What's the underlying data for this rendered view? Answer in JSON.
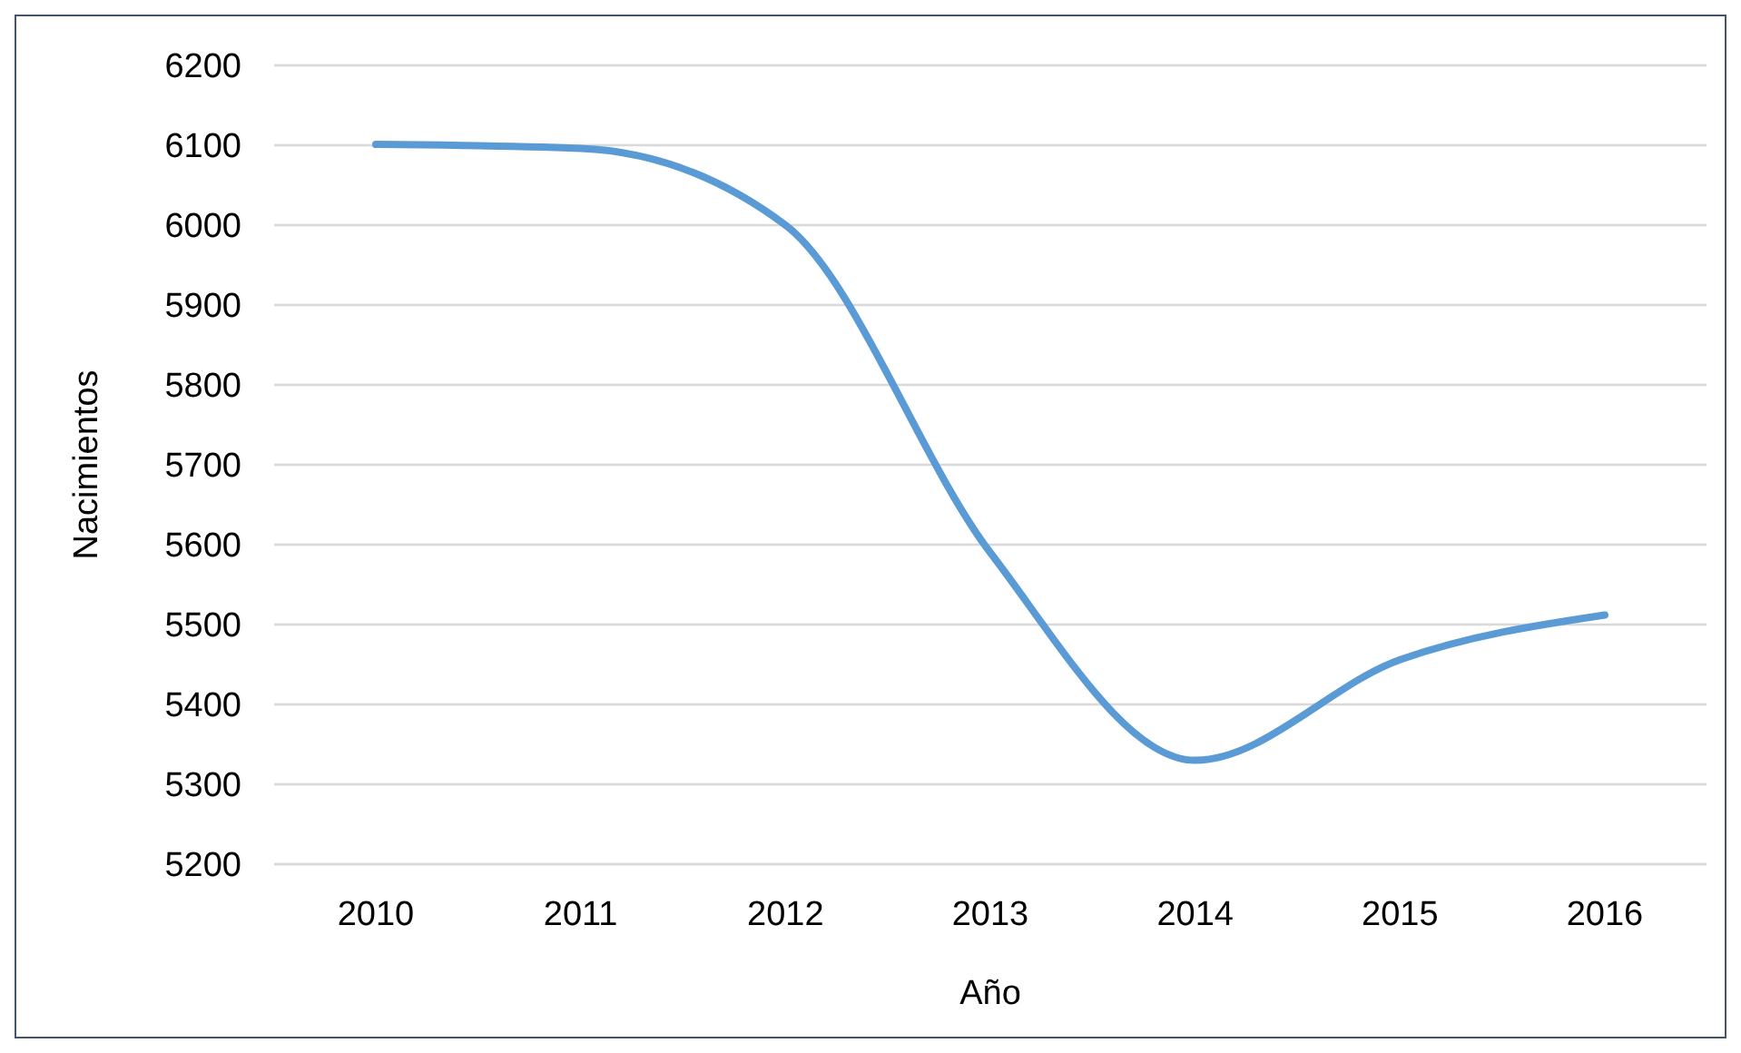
{
  "chart_data": {
    "type": "line",
    "xlabel": "Año",
    "ylabel": "Nacimientos",
    "categories": [
      "2010",
      "2011",
      "2012",
      "2013",
      "2014",
      "2015",
      "2016"
    ],
    "series": [
      {
        "color": "#5b9bd5",
        "values": [
          6101,
          6096,
          6000,
          5590,
          5330,
          5456,
          5512
        ]
      }
    ],
    "ylim": [
      5200,
      6200
    ],
    "yticks": [
      5200,
      5300,
      5400,
      5500,
      5600,
      5700,
      5800,
      5900,
      6000,
      6100,
      6200
    ],
    "grid": "y",
    "marker": "none",
    "line_style": "solid"
  }
}
